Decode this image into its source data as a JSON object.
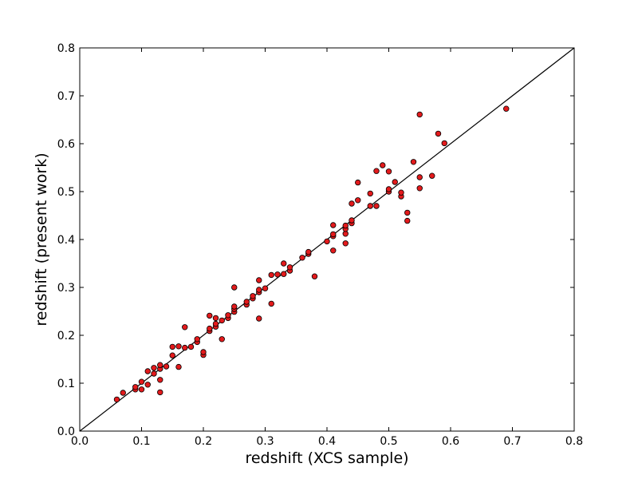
{
  "chart_data": {
    "type": "scatter",
    "title": "",
    "xlabel": "redshift  (XCS sample)",
    "ylabel": "redshift  (present work)",
    "xlim": [
      0.0,
      0.8
    ],
    "ylim": [
      0.0,
      0.8
    ],
    "xticks": [
      "0.0",
      "0.1",
      "0.2",
      "0.3",
      "0.4",
      "0.5",
      "0.6",
      "0.7",
      "0.8"
    ],
    "yticks": [
      "0.0",
      "0.1",
      "0.2",
      "0.3",
      "0.4",
      "0.5",
      "0.6",
      "0.7",
      "0.8"
    ],
    "grid": false,
    "marker_color": "#e31a1c",
    "reference_line": {
      "x": [
        0.0,
        0.8
      ],
      "y": [
        0.0,
        0.8
      ],
      "color": "#000000"
    },
    "points": [
      [
        0.06,
        0.066
      ],
      [
        0.07,
        0.08
      ],
      [
        0.09,
        0.087
      ],
      [
        0.09,
        0.092
      ],
      [
        0.1,
        0.087
      ],
      [
        0.1,
        0.103
      ],
      [
        0.11,
        0.097
      ],
      [
        0.11,
        0.125
      ],
      [
        0.12,
        0.12
      ],
      [
        0.12,
        0.132
      ],
      [
        0.13,
        0.107
      ],
      [
        0.13,
        0.081
      ],
      [
        0.13,
        0.13
      ],
      [
        0.13,
        0.138
      ],
      [
        0.14,
        0.135
      ],
      [
        0.15,
        0.158
      ],
      [
        0.15,
        0.176
      ],
      [
        0.16,
        0.134
      ],
      [
        0.16,
        0.177
      ],
      [
        0.17,
        0.174
      ],
      [
        0.17,
        0.217
      ],
      [
        0.18,
        0.176
      ],
      [
        0.19,
        0.186
      ],
      [
        0.19,
        0.192
      ],
      [
        0.2,
        0.159
      ],
      [
        0.2,
        0.165
      ],
      [
        0.21,
        0.209
      ],
      [
        0.21,
        0.214
      ],
      [
        0.21,
        0.241
      ],
      [
        0.22,
        0.218
      ],
      [
        0.22,
        0.224
      ],
      [
        0.22,
        0.236
      ],
      [
        0.23,
        0.192
      ],
      [
        0.23,
        0.231
      ],
      [
        0.24,
        0.236
      ],
      [
        0.24,
        0.242
      ],
      [
        0.25,
        0.249
      ],
      [
        0.25,
        0.255
      ],
      [
        0.25,
        0.26
      ],
      [
        0.25,
        0.3
      ],
      [
        0.27,
        0.264
      ],
      [
        0.27,
        0.27
      ],
      [
        0.28,
        0.277
      ],
      [
        0.28,
        0.282
      ],
      [
        0.29,
        0.235
      ],
      [
        0.29,
        0.29
      ],
      [
        0.29,
        0.295
      ],
      [
        0.29,
        0.315
      ],
      [
        0.3,
        0.298
      ],
      [
        0.31,
        0.266
      ],
      [
        0.31,
        0.326
      ],
      [
        0.32,
        0.327
      ],
      [
        0.33,
        0.328
      ],
      [
        0.33,
        0.35
      ],
      [
        0.34,
        0.335
      ],
      [
        0.34,
        0.342
      ],
      [
        0.36,
        0.362
      ],
      [
        0.37,
        0.37
      ],
      [
        0.37,
        0.374
      ],
      [
        0.38,
        0.323
      ],
      [
        0.4,
        0.396
      ],
      [
        0.41,
        0.377
      ],
      [
        0.41,
        0.407
      ],
      [
        0.41,
        0.411
      ],
      [
        0.41,
        0.43
      ],
      [
        0.43,
        0.392
      ],
      [
        0.43,
        0.412
      ],
      [
        0.43,
        0.422
      ],
      [
        0.43,
        0.429
      ],
      [
        0.44,
        0.434
      ],
      [
        0.44,
        0.44
      ],
      [
        0.44,
        0.475
      ],
      [
        0.45,
        0.482
      ],
      [
        0.45,
        0.519
      ],
      [
        0.47,
        0.47
      ],
      [
        0.47,
        0.496
      ],
      [
        0.48,
        0.47
      ],
      [
        0.48,
        0.543
      ],
      [
        0.49,
        0.555
      ],
      [
        0.5,
        0.5
      ],
      [
        0.5,
        0.505
      ],
      [
        0.5,
        0.542
      ],
      [
        0.51,
        0.52
      ],
      [
        0.52,
        0.49
      ],
      [
        0.52,
        0.498
      ],
      [
        0.53,
        0.439
      ],
      [
        0.53,
        0.456
      ],
      [
        0.54,
        0.562
      ],
      [
        0.55,
        0.507
      ],
      [
        0.55,
        0.53
      ],
      [
        0.55,
        0.661
      ],
      [
        0.57,
        0.533
      ],
      [
        0.58,
        0.621
      ],
      [
        0.59,
        0.601
      ],
      [
        0.69,
        0.673
      ]
    ]
  }
}
